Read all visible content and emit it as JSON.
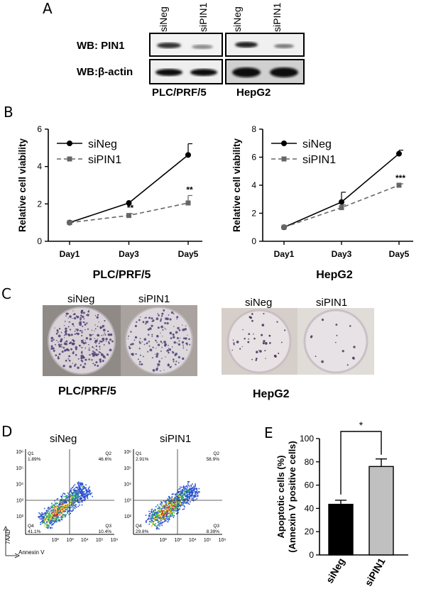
{
  "panels": {
    "A": "A",
    "B": "B",
    "C": "C",
    "D": "D",
    "E": "E"
  },
  "wb": {
    "lanes": [
      "siNeg",
      "siPIN1",
      "siNeg",
      "siPIN1"
    ],
    "rows": [
      "WB: PIN1",
      "WB:β-actin"
    ],
    "cell_lines": [
      "PLC/PRF/5",
      "HepG2"
    ]
  },
  "colony": {
    "labels": [
      "siNeg",
      "siPIN1",
      "siNeg",
      "siPIN1"
    ],
    "cell_lines": [
      "PLC/PRF/5",
      "HepG2"
    ]
  },
  "flow": {
    "conditions": [
      "siNeg",
      "siPIN1"
    ],
    "siNeg": {
      "Q1": "Q1",
      "Q1v": "1.89%",
      "Q2": "Q2",
      "Q2v": "46.6%",
      "Q3": "Q3",
      "Q3v": "10.4%",
      "Q4": "Q4",
      "Q4v": "41.1%"
    },
    "siPIN1": {
      "Q1": "Q1",
      "Q1v": "2.91%",
      "Q2": "Q2",
      "Q2v": "58.9%",
      "Q3": "Q3",
      "Q3v": "8.39%",
      "Q4": "Q4",
      "Q4v": "29.8%"
    },
    "yaxis": "7AAD",
    "xaxis": "Annexin V",
    "ticks_y": [
      "10⁶",
      "10⁵",
      "10⁴",
      "10³",
      "10²",
      "10¹"
    ],
    "ticks_x": [
      "10⁰",
      "10¹",
      "10²",
      "10³",
      "10⁴",
      "10⁵",
      "10⁶"
    ]
  },
  "chart_data": [
    {
      "type": "line",
      "title": "PLC/PRF/5",
      "ylabel": "Relative cell viability",
      "categories": [
        "Day1",
        "Day3",
        "Day5"
      ],
      "ylim": [
        0,
        6
      ],
      "yticks": [
        0,
        2,
        4,
        6
      ],
      "series": [
        {
          "name": "siNeg",
          "values": [
            1.0,
            2.05,
            4.62
          ],
          "errors": [
            0,
            0,
            0.6
          ],
          "color": "#000000",
          "dash": false
        },
        {
          "name": "siPIN1",
          "values": [
            1.0,
            1.38,
            2.05
          ],
          "errors": [
            0,
            0.1,
            0.4
          ],
          "color": "#666666",
          "dash": true
        }
      ],
      "annotations": [
        {
          "category": "Day3",
          "text": "**"
        },
        {
          "category": "Day5",
          "text": "**"
        }
      ],
      "legend": "top-left"
    },
    {
      "type": "line",
      "title": "HepG2",
      "ylabel": "Relative cell viability",
      "categories": [
        "Day1",
        "Day3",
        "Day5"
      ],
      "ylim": [
        0,
        8
      ],
      "yticks": [
        0,
        2,
        4,
        6,
        8
      ],
      "series": [
        {
          "name": "siNeg",
          "values": [
            1.0,
            2.8,
            6.25
          ],
          "errors": [
            0,
            0.7,
            0.25
          ],
          "color": "#000000",
          "dash": false
        },
        {
          "name": "siPIN1",
          "values": [
            1.0,
            2.4,
            4.0
          ],
          "errors": [
            0,
            0.2,
            0.1
          ],
          "color": "#666666",
          "dash": true
        }
      ],
      "annotations": [
        {
          "category": "Day5",
          "text": "***"
        }
      ],
      "legend": "top-left"
    },
    {
      "type": "bar",
      "ylabel": "Apoptotic cells (%)",
      "ylabel2": "(Annexin  V positive cells)",
      "categories": [
        "siNeg",
        "siPIN1"
      ],
      "values": [
        43.5,
        76
      ],
      "errors": [
        3.5,
        6.5
      ],
      "colors": [
        "#000000",
        "#c0c0c0"
      ],
      "ylim": [
        0,
        100
      ],
      "yticks": [
        0,
        20,
        40,
        60,
        80,
        100
      ],
      "significance": "*"
    }
  ]
}
